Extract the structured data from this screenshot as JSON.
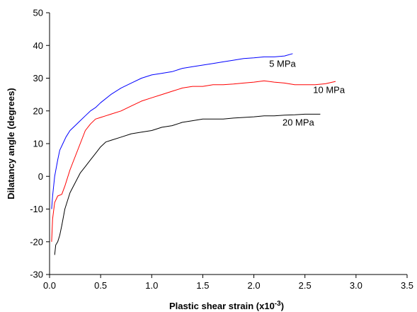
{
  "chart_data": {
    "type": "line",
    "xlabel": "Plastic shear strain (x10",
    "xlabel_sup": "-3",
    "xlabel_close": ")",
    "ylabel": "Dilatancy angle (degrees)",
    "xlim": [
      0,
      3.5
    ],
    "ylim": [
      -30,
      50
    ],
    "xticks": [
      "0.0",
      "0.5",
      "1.0",
      "1.5",
      "2.0",
      "2.5",
      "3.0",
      "3.5"
    ],
    "xtick_values": [
      0,
      0.5,
      1.0,
      1.5,
      2.0,
      2.5,
      3.0,
      3.5
    ],
    "yticks": [
      "-30",
      "-20",
      "-10",
      "0",
      "10",
      "20",
      "30",
      "40",
      "50"
    ],
    "ytick_values": [
      -30,
      -20,
      -10,
      0,
      10,
      20,
      30,
      40,
      50
    ],
    "grid": false,
    "series": [
      {
        "name": "5 MPa",
        "color": "#0000ff",
        "x": [
          0.02,
          0.03,
          0.05,
          0.08,
          0.1,
          0.13,
          0.16,
          0.2,
          0.25,
          0.3,
          0.35,
          0.4,
          0.45,
          0.5,
          0.6,
          0.7,
          0.8,
          0.9,
          1.0,
          1.1,
          1.2,
          1.3,
          1.4,
          1.5,
          1.6,
          1.7,
          1.8,
          1.9,
          2.0,
          2.1,
          2.2,
          2.3,
          2.38
        ],
        "y": [
          -10,
          -6,
          0,
          5,
          8,
          10,
          12,
          14,
          15.5,
          17,
          18.5,
          20,
          21,
          22.5,
          25,
          27,
          28.5,
          30,
          31,
          31.5,
          32,
          33,
          33.5,
          34,
          34.5,
          35,
          35.5,
          36,
          36.2,
          36.5,
          36.5,
          36.8,
          37.5
        ]
      },
      {
        "name": "10 MPa",
        "color": "#ff0000",
        "x": [
          0.02,
          0.03,
          0.05,
          0.08,
          0.12,
          0.15,
          0.2,
          0.25,
          0.3,
          0.35,
          0.4,
          0.45,
          0.5,
          0.55,
          0.6,
          0.7,
          0.8,
          0.9,
          1.0,
          1.1,
          1.2,
          1.3,
          1.4,
          1.5,
          1.6,
          1.7,
          1.8,
          1.9,
          2.0,
          2.1,
          2.2,
          2.3,
          2.4,
          2.5,
          2.6,
          2.7,
          2.8
        ],
        "y": [
          -20,
          -13,
          -8,
          -6,
          -5.5,
          -3,
          2,
          6,
          10,
          14,
          16,
          17.5,
          18,
          18.5,
          19,
          20,
          21.5,
          23,
          24,
          25,
          26,
          27,
          27.5,
          27.5,
          28,
          28,
          28.2,
          28.5,
          28.8,
          29.2,
          28.8,
          28.5,
          28,
          28,
          28,
          28.3,
          29
        ]
      },
      {
        "name": "20 MPa",
        "color": "#000000",
        "x": [
          0.05,
          0.06,
          0.08,
          0.1,
          0.12,
          0.15,
          0.2,
          0.25,
          0.3,
          0.35,
          0.4,
          0.45,
          0.5,
          0.55,
          0.6,
          0.7,
          0.8,
          0.9,
          1.0,
          1.1,
          1.2,
          1.3,
          1.4,
          1.5,
          1.6,
          1.7,
          1.8,
          1.9,
          2.0,
          2.1,
          2.2,
          2.3,
          2.4,
          2.5,
          2.6,
          2.65
        ],
        "y": [
          -24,
          -21,
          -20,
          -18,
          -15,
          -10,
          -5,
          -2,
          1,
          3,
          5,
          7,
          9,
          10.5,
          11,
          12,
          13,
          13.5,
          14,
          15,
          15.5,
          16.5,
          17,
          17.5,
          17.5,
          17.5,
          17.8,
          18,
          18.2,
          18.5,
          18.5,
          18.7,
          18.8,
          19,
          19,
          19
        ]
      }
    ],
    "annotations": [
      {
        "text": "5 MPa",
        "x": 2.15,
        "y": 33.5
      },
      {
        "text": "10 MPa",
        "x": 2.58,
        "y": 25.5
      },
      {
        "text": "20 MPa",
        "x": 2.28,
        "y": 15.5
      }
    ]
  }
}
